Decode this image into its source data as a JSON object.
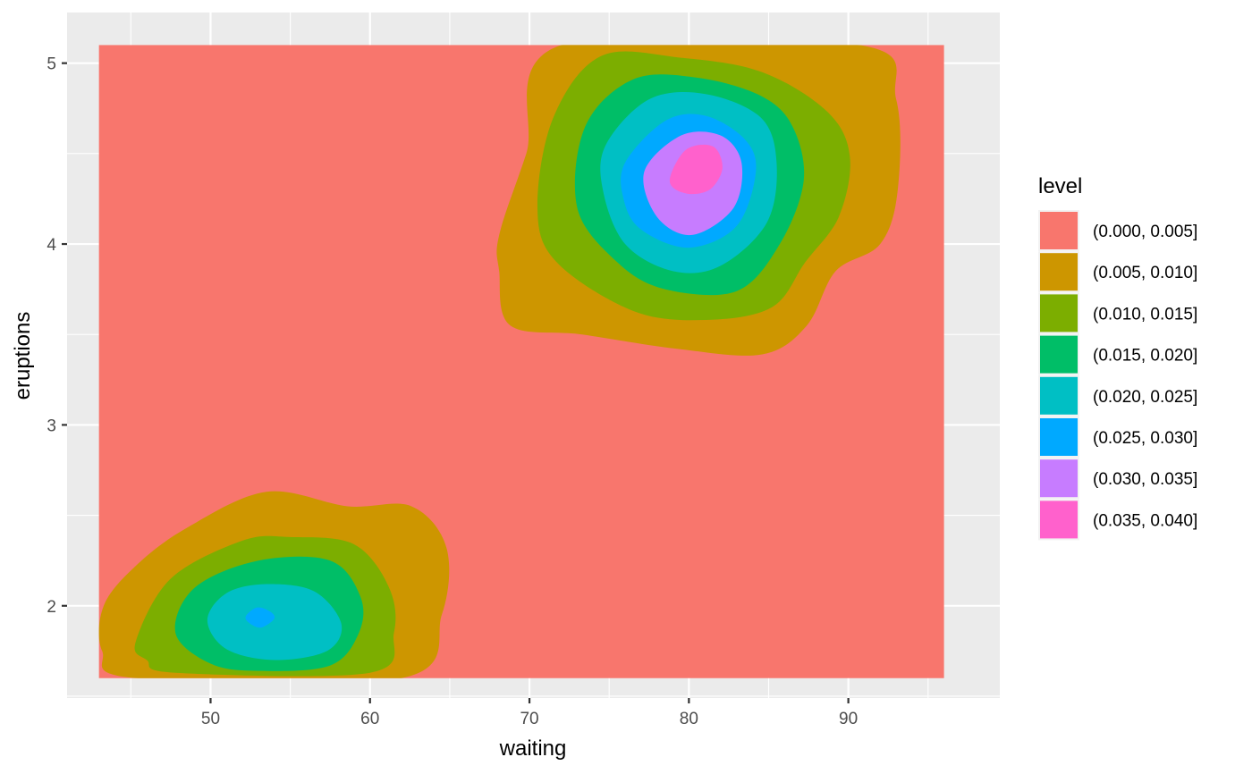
{
  "chart_data": {
    "type": "filled-contour",
    "title": "",
    "xlabel": "waiting",
    "ylabel": "eruptions",
    "xlim": [
      41,
      99.5
    ],
    "ylim": [
      1.49,
      5.28
    ],
    "x_ticks": [
      50,
      60,
      70,
      80,
      90
    ],
    "x_minor_ticks": [
      45,
      55,
      65,
      75,
      85,
      95
    ],
    "y_ticks": [
      2,
      3,
      4,
      5
    ],
    "y_minor_ticks": [
      1.5,
      2.5,
      3.5,
      4.5
    ],
    "data_extent": {
      "x": [
        43,
        96
      ],
      "y": [
        1.6,
        5.1
      ]
    },
    "grid": true,
    "background_color": "#EBEBEB",
    "legend": {
      "title": "level",
      "position": "right",
      "entries": [
        {
          "label": "(0.000, 0.005]",
          "color": "#F8766D"
        },
        {
          "label": "(0.005, 0.010]",
          "color": "#CD9600"
        },
        {
          "label": "(0.010, 0.015]",
          "color": "#7CAE00"
        },
        {
          "label": "(0.015, 0.020]",
          "color": "#00BE67"
        },
        {
          "label": "(0.020, 0.025]",
          "color": "#00BFC4"
        },
        {
          "label": "(0.025, 0.030]",
          "color": "#00A9FF"
        },
        {
          "label": "(0.030, 0.035]",
          "color": "#C77CFF"
        },
        {
          "label": "(0.035, 0.040]",
          "color": "#FF61CC"
        }
      ]
    },
    "regions": [
      {
        "level": 1,
        "points": [
          [
            43.3,
            2.0
          ],
          [
            45.3,
            2.22
          ],
          [
            48.5,
            2.43
          ],
          [
            53.5,
            2.63
          ],
          [
            58.6,
            2.55
          ],
          [
            62.6,
            2.55
          ],
          [
            64.8,
            2.32
          ],
          [
            64.5,
            1.95
          ],
          [
            62.0,
            1.6
          ],
          [
            45.3,
            1.6
          ],
          [
            43.2,
            1.75
          ]
        ]
      },
      {
        "level": 1,
        "points": [
          [
            72.0,
            5.1
          ],
          [
            90.7,
            5.1
          ],
          [
            93.0,
            4.8
          ],
          [
            93.1,
            4.3
          ],
          [
            92.0,
            4.0
          ],
          [
            89.2,
            3.85
          ],
          [
            87.4,
            3.55
          ],
          [
            84.6,
            3.39
          ],
          [
            79.3,
            3.42
          ],
          [
            73.3,
            3.5
          ],
          [
            68.8,
            3.55
          ],
          [
            68.1,
            3.85
          ],
          [
            68.1,
            4.05
          ],
          [
            69.8,
            4.5
          ]
        ]
      },
      {
        "level": 2,
        "points": [
          [
            45.3,
            1.8
          ],
          [
            47.5,
            2.15
          ],
          [
            52.0,
            2.36
          ],
          [
            55.0,
            2.38
          ],
          [
            59.0,
            2.34
          ],
          [
            61.2,
            2.1
          ],
          [
            61.5,
            1.85
          ],
          [
            60.0,
            1.63
          ],
          [
            47.8,
            1.63
          ],
          [
            46.0,
            1.7
          ]
        ]
      },
      {
        "level": 2,
        "points": [
          [
            71.5,
            4.7
          ],
          [
            74.5,
            5.04
          ],
          [
            79.5,
            5.03
          ],
          [
            84.6,
            4.95
          ],
          [
            88.7,
            4.73
          ],
          [
            90.1,
            4.48
          ],
          [
            89.4,
            4.15
          ],
          [
            87.3,
            3.9
          ],
          [
            85.2,
            3.65
          ],
          [
            81.0,
            3.58
          ],
          [
            76.5,
            3.63
          ],
          [
            71.7,
            3.9
          ],
          [
            70.5,
            4.2
          ]
        ]
      },
      {
        "level": 3,
        "points": [
          [
            47.8,
            1.85
          ],
          [
            49.0,
            2.1
          ],
          [
            53.0,
            2.25
          ],
          [
            57.5,
            2.25
          ],
          [
            59.4,
            2.05
          ],
          [
            59.3,
            1.85
          ],
          [
            57.5,
            1.67
          ],
          [
            53.0,
            1.64
          ],
          [
            50.0,
            1.68
          ]
        ]
      },
      {
        "level": 3,
        "points": [
          [
            73.5,
            4.65
          ],
          [
            76.5,
            4.91
          ],
          [
            80.5,
            4.92
          ],
          [
            84.5,
            4.82
          ],
          [
            86.5,
            4.65
          ],
          [
            87.2,
            4.35
          ],
          [
            85.7,
            4.0
          ],
          [
            83.0,
            3.74
          ],
          [
            78.5,
            3.75
          ],
          [
            75.5,
            3.9
          ],
          [
            73.0,
            4.2
          ]
        ]
      },
      {
        "level": 4,
        "points": [
          [
            49.8,
            1.92
          ],
          [
            51.0,
            2.07
          ],
          [
            53.5,
            2.12
          ],
          [
            56.5,
            2.08
          ],
          [
            58.2,
            1.9
          ],
          [
            57.3,
            1.75
          ],
          [
            54.0,
            1.7
          ],
          [
            51.0,
            1.76
          ]
        ]
      },
      {
        "level": 4,
        "points": [
          [
            74.8,
            4.55
          ],
          [
            77.5,
            4.8
          ],
          [
            81.0,
            4.83
          ],
          [
            84.5,
            4.7
          ],
          [
            85.5,
            4.45
          ],
          [
            84.9,
            4.12
          ],
          [
            82.0,
            3.88
          ],
          [
            79.0,
            3.85
          ],
          [
            76.0,
            4.0
          ],
          [
            74.6,
            4.3
          ]
        ]
      },
      {
        "level": 5,
        "points": [
          [
            52.2,
            1.94
          ],
          [
            52.9,
            1.99
          ],
          [
            53.7,
            1.97
          ],
          [
            54.0,
            1.93
          ],
          [
            53.2,
            1.88
          ],
          [
            52.5,
            1.9
          ]
        ]
      },
      {
        "level": 5,
        "points": [
          [
            76.0,
            4.45
          ],
          [
            78.5,
            4.68
          ],
          [
            81.0,
            4.71
          ],
          [
            83.5,
            4.58
          ],
          [
            84.2,
            4.4
          ],
          [
            83.0,
            4.1
          ],
          [
            80.0,
            3.98
          ],
          [
            77.0,
            4.08
          ],
          [
            75.9,
            4.25
          ]
        ]
      },
      {
        "level": 6,
        "points": [
          [
            77.2,
            4.4
          ],
          [
            79.5,
            4.6
          ],
          [
            82.0,
            4.6
          ],
          [
            83.3,
            4.45
          ],
          [
            82.8,
            4.2
          ],
          [
            80.2,
            4.05
          ],
          [
            78.0,
            4.15
          ]
        ]
      },
      {
        "level": 7,
        "points": [
          [
            78.8,
            4.35
          ],
          [
            79.8,
            4.52
          ],
          [
            81.5,
            4.54
          ],
          [
            82.1,
            4.42
          ],
          [
            81.3,
            4.3
          ],
          [
            79.8,
            4.28
          ]
        ]
      }
    ]
  }
}
